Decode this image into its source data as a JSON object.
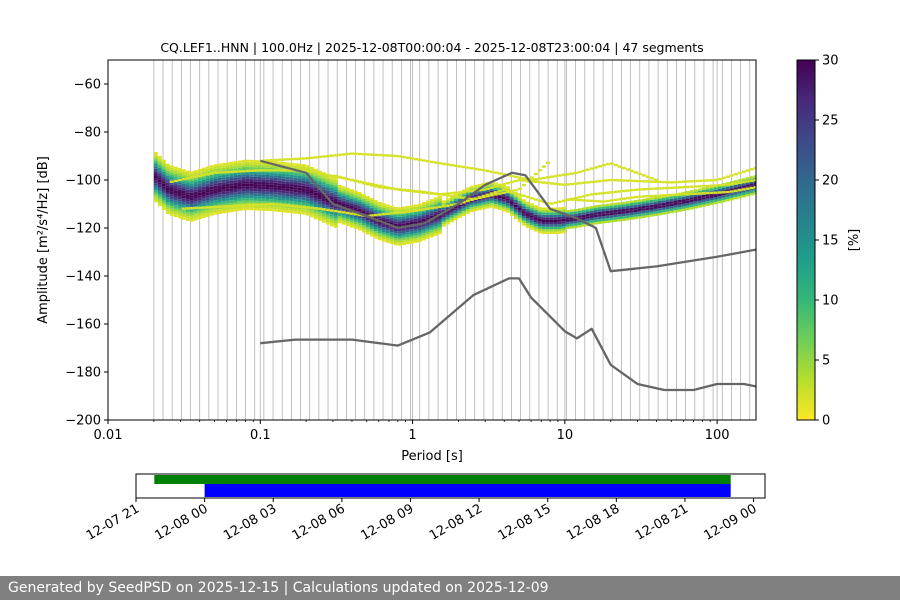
{
  "footer": {
    "text": "Generated by SeedPSD on 2025-12-15 | Calculations updated on 2025-12-09"
  },
  "colormap": {
    "stops": [
      "#fde725",
      "#b5de2b",
      "#6ece58",
      "#35b779",
      "#1f9e89",
      "#26828e",
      "#31688e",
      "#3e4989",
      "#482878",
      "#440154"
    ]
  },
  "chart_data": [
    {
      "type": "heatmap",
      "title": "CQ.LEF1..HNN | 100.0Hz | 2025-12-08T00:00:04 - 2025-12-08T23:00:04 | 47 segments",
      "xlabel": "Period [s]",
      "ylabel": "Amplitude [m²/s⁴/Hz] [dB]",
      "xscale": "log",
      "xlim": [
        0.01,
        180
      ],
      "ylim": [
        -200,
        -50
      ],
      "xtick_labels": [
        "0.01",
        "0.1",
        "1",
        "10",
        "100"
      ],
      "ytick_labels": [
        "−60",
        "−80",
        "−100",
        "−120",
        "−140",
        "−160",
        "−180",
        "−200"
      ],
      "grid": "vertical lines at periods of the calculation bins",
      "colorbar": {
        "label": "[%]",
        "range": [
          0,
          30
        ],
        "tick_labels": [
          "0",
          "5",
          "10",
          "15",
          "20",
          "25",
          "30"
        ]
      },
      "series": [
        {
          "x": [
            0.1,
            0.2,
            0.3,
            0.5,
            0.8,
            1.2,
            2,
            3,
            4.5,
            5.5,
            8,
            12,
            16,
            20,
            40,
            100,
            180
          ],
          "y": [
            -92,
            -97,
            -110,
            -115,
            -120,
            -118,
            -110,
            -102,
            -97,
            -98,
            -112,
            -116,
            -120,
            -138,
            -136,
            -132,
            -129
          ]
        },
        {
          "x": [
            0.1,
            0.17,
            0.4,
            0.8,
            1.3,
            2.5,
            4.3,
            5,
            6,
            10,
            12,
            15,
            20,
            30,
            45,
            70,
            100,
            150,
            180
          ],
          "y": [
            -168,
            -166.5,
            -166.5,
            -169,
            -163.5,
            -148,
            -141,
            -141,
            -149,
            -163,
            -166,
            -162,
            -177,
            -185,
            -187.5,
            -187.5,
            -185,
            -185,
            -186
          ]
        }
      ],
      "mode_curve": {
        "x": [
          0.02,
          0.025,
          0.035,
          0.05,
          0.08,
          0.12,
          0.2,
          0.3,
          0.45,
          0.6,
          0.8,
          1.1,
          1.6,
          2.4,
          3.3,
          4.2,
          5.5,
          7,
          9,
          12,
          16,
          25,
          40,
          60,
          100,
          180
        ],
        "y": [
          -98,
          -104,
          -107,
          -104,
          -102,
          -102.5,
          -104,
          -109,
          -113,
          -117,
          -119.5,
          -118,
          -114,
          -108,
          -106,
          -108,
          -114,
          -117,
          -117,
          -116,
          -114.5,
          -113,
          -111,
          -109,
          -106,
          -102
        ]
      },
      "scatter_curves": [
        {
          "x": [
            0.025,
            0.05,
            0.1,
            0.2,
            0.4,
            0.8,
            1.5,
            3,
            5,
            10,
            20,
            50,
            100,
            180
          ],
          "y": [
            -101,
            -97,
            -96,
            -96,
            -100,
            -104,
            -106,
            -104,
            -100,
            -102,
            -100,
            -101,
            -100,
            -95
          ]
        },
        {
          "x": [
            0.03,
            0.06,
            0.12,
            0.25,
            0.5,
            1,
            2,
            4,
            8,
            15,
            30,
            60,
            120,
            180
          ],
          "y": [
            -112,
            -111,
            -110,
            -112,
            -115,
            -113,
            -110,
            -104,
            -110,
            -106,
            -104,
            -103,
            -102,
            -100
          ]
        },
        {
          "x": [
            0.1,
            0.2,
            0.4,
            0.8,
            1.5,
            3,
            6,
            12,
            20,
            40
          ],
          "y": [
            -92,
            -91,
            -89,
            -90,
            -93,
            -96,
            -100,
            -97,
            -93,
            -100
          ]
        },
        {
          "x": [
            0.3,
            0.6,
            1.2,
            2.5,
            5,
            8
          ],
          "y": [
            -98,
            -103,
            -105,
            -108,
            -104,
            -92
          ]
        },
        {
          "x": [
            10,
            18,
            30,
            60,
            120,
            180
          ],
          "y": [
            -108,
            -109,
            -107,
            -106,
            -105,
            -103
          ]
        }
      ]
    },
    {
      "type": "bar",
      "title": "",
      "xlabel": "",
      "ylabel": "",
      "x_tick_labels": [
        "12-07 21",
        "12-08 00",
        "12-08 03",
        "12-08 06",
        "12-08 09",
        "12-08 12",
        "12-08 15",
        "12-08 18",
        "12-08 21",
        "12-09 00"
      ],
      "x_range_hours": [
        -3,
        24.5
      ],
      "bars": [
        {
          "name": "",
          "start_hour": -2.2,
          "end_hour": 23.0,
          "color": "#008000"
        },
        {
          "name": "",
          "start_hour": 0.0,
          "end_hour": 23.0,
          "color": "#0000ff"
        }
      ]
    }
  ]
}
